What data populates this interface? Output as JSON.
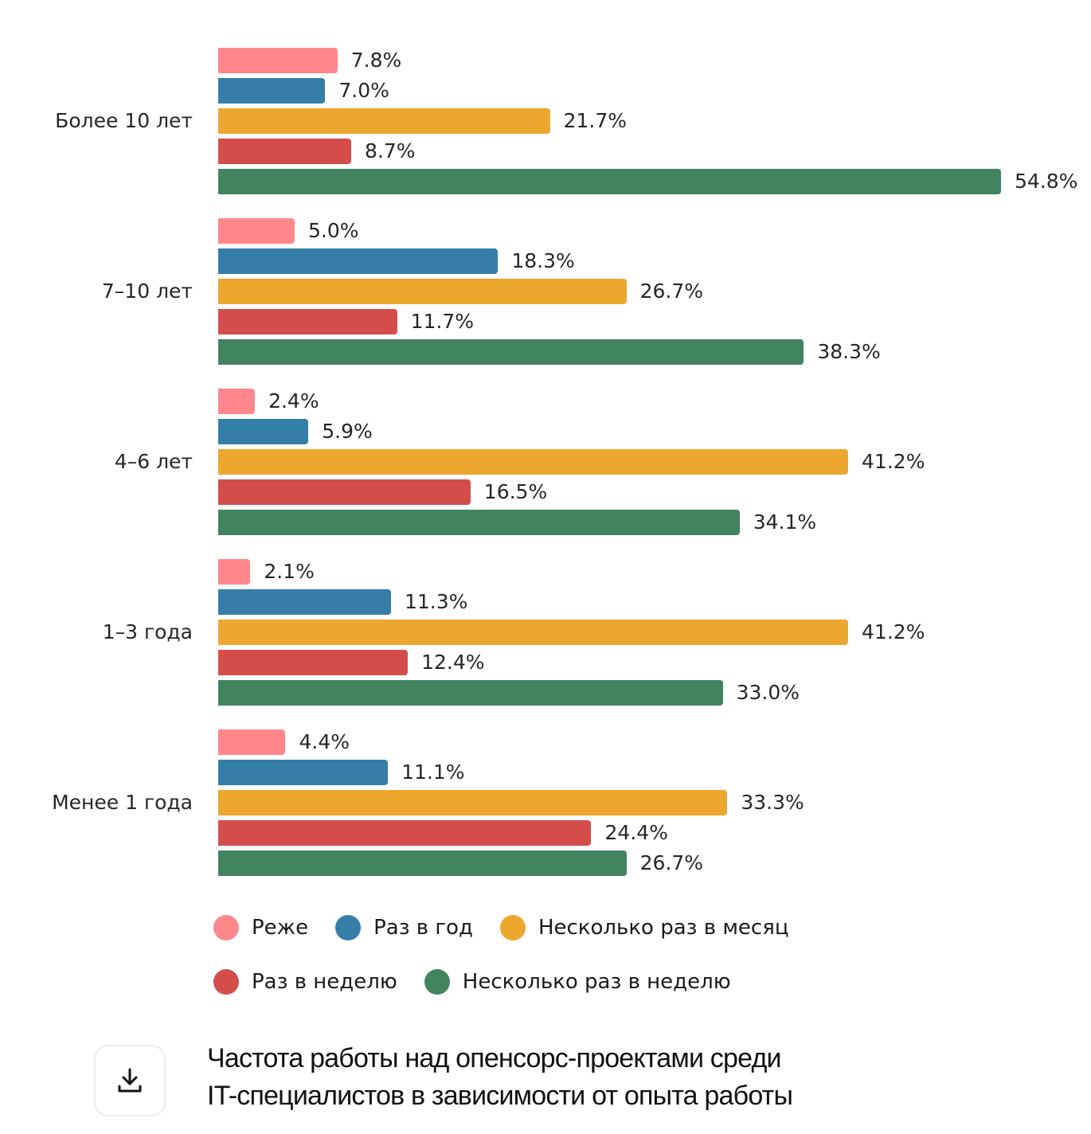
{
  "chart_data": {
    "type": "bar",
    "orientation": "horizontal",
    "title": "Частота работы над опенсорс-проектами среди IT-специалистов в зависимости от опыта работы",
    "xlabel": "",
    "ylabel": "",
    "value_format": "percent",
    "categories": [
      "Более 10 лет",
      "7–10 лет",
      "4–6 лет",
      "1–3 года",
      "Менее 1 года"
    ],
    "series": [
      {
        "name": "Реже",
        "color": "#FF878C",
        "values": [
          7.8,
          5.0,
          2.4,
          2.1,
          4.4
        ]
      },
      {
        "name": "Раз в год",
        "color": "#357EA8",
        "values": [
          7.0,
          18.3,
          5.9,
          11.3,
          11.1
        ]
      },
      {
        "name": "Несколько раз в месяц",
        "color": "#ECA72F",
        "values": [
          21.7,
          26.7,
          41.2,
          41.2,
          33.3
        ]
      },
      {
        "name": "Раз в неделю",
        "color": "#D44D4B",
        "values": [
          8.7,
          11.7,
          16.5,
          12.4,
          24.4
        ]
      },
      {
        "name": "Несколько раз в неделю",
        "color": "#428360",
        "values": [
          54.8,
          38.3,
          34.1,
          33.0,
          26.7
        ]
      }
    ],
    "data_labels": [
      [
        "7.8%",
        "7.0%",
        "21.7%",
        "8.7%",
        "54.8%"
      ],
      [
        "5.0%",
        "18.3%",
        "26.7%",
        "11.7%",
        "38.3%"
      ],
      [
        "2.4%",
        "5.9%",
        "41.2%",
        "16.5%",
        "34.1%"
      ],
      [
        "2.1%",
        "11.3%",
        "41.2%",
        "12.4%",
        "33.0%"
      ],
      [
        "4.4%",
        "11.1%",
        "33.3%",
        "24.4%",
        "26.7%"
      ]
    ],
    "legend": {
      "position": "bottom",
      "rows": [
        [
          "Реже",
          "Раз в год",
          "Несколько раз в месяц"
        ],
        [
          "Раз в неделю",
          "Несколько раз в неделю"
        ]
      ]
    },
    "grid": false
  },
  "caption": {
    "line1": "Частота работы над опенсорс-проектами среди",
    "line2": "IT-специалистов в зависимости от опыта работы"
  },
  "download_button": {
    "icon": "download-icon"
  }
}
